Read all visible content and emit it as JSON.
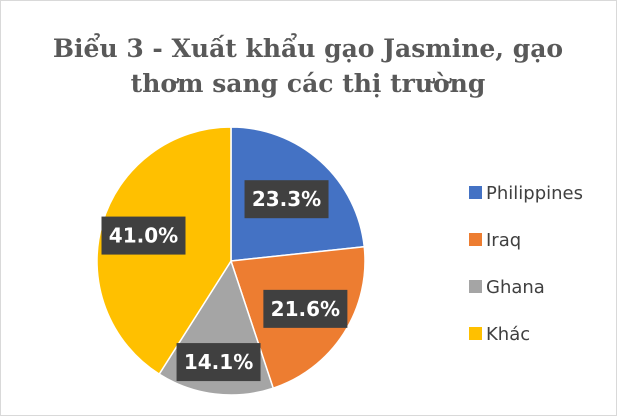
{
  "chart_data": {
    "type": "pie",
    "title_lines": [
      "Biểu 3 - Xuất khẩu gạo Jasmine, gạo",
      "thơm sang các thị trường"
    ],
    "categories": [
      "Philippines",
      "Iraq",
      "Ghana",
      "Khác"
    ],
    "values": [
      23.3,
      21.6,
      14.1,
      41.0
    ],
    "data_labels": [
      "23.3%",
      "21.6%",
      "14.1%",
      "41.0%"
    ],
    "colors": [
      "#4472c4",
      "#ed7d31",
      "#a5a5a5",
      "#ffc000"
    ],
    "legend_position": "right"
  }
}
